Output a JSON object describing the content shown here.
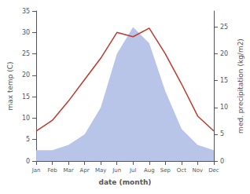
{
  "chart_data": {
    "type": "line",
    "categories": [
      "Jan",
      "Feb",
      "Mar",
      "Apr",
      "May",
      "Jun",
      "Jul",
      "Aug",
      "Sep",
      "Oct",
      "Nov",
      "Dec"
    ],
    "series": [
      {
        "type": "area",
        "color": "#b8c4e8",
        "axis": "y2",
        "values": [
          2,
          2,
          3,
          5,
          10,
          20,
          25,
          22,
          13,
          6,
          3,
          2
        ]
      },
      {
        "type": "line",
        "color": "#c0392b",
        "values": [
          7,
          9.5,
          14,
          19,
          24,
          30,
          29,
          31,
          25,
          18,
          10.5,
          7
        ]
      }
    ],
    "xlabel": "date (month)",
    "ylabel": "max temp (C)",
    "y2label": "med. precipitation (kg/m2)",
    "ylim": [
      0,
      35
    ],
    "yticks": [
      0,
      5,
      10,
      15,
      20,
      25,
      30,
      35
    ],
    "y2lim": [
      0,
      28
    ],
    "y2ticks": [
      0,
      5,
      10,
      15,
      20,
      25
    ],
    "grid": false
  }
}
